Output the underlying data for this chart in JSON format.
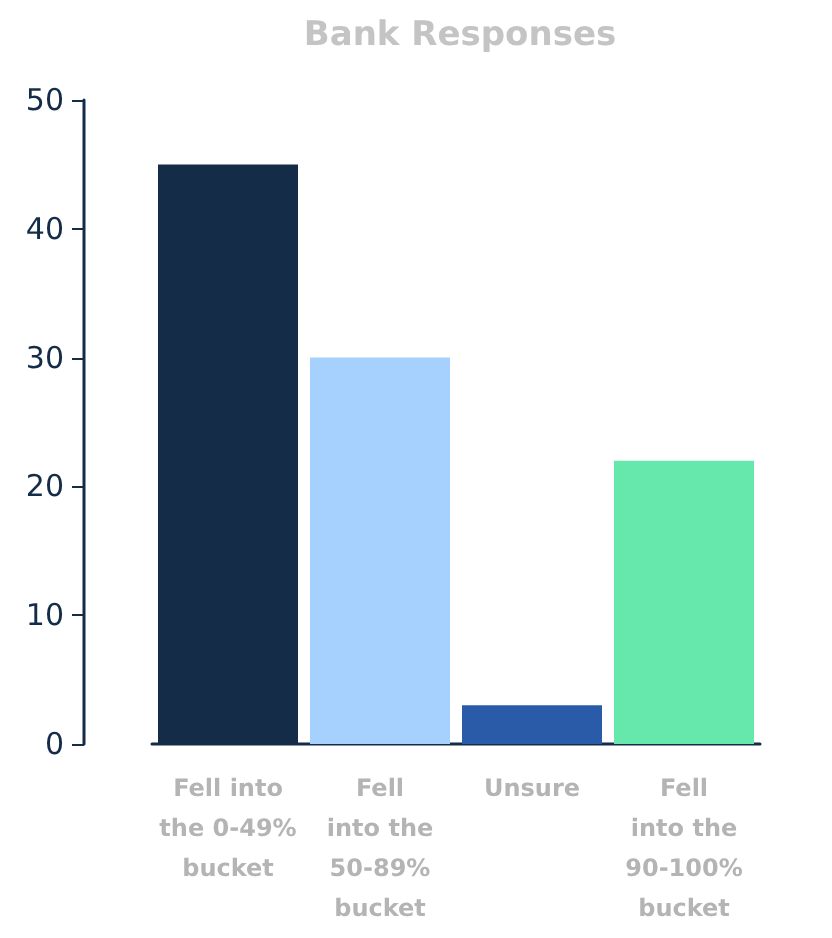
{
  "chart_data": {
    "type": "bar",
    "title": "Bank Responses",
    "categories": [
      "Fell into\nthe 0-49%\nbucket",
      "Fell\ninto the\n50-89%\nbucket",
      "Unsure",
      "Fell\ninto the\n90-100%\nbucket"
    ],
    "values": [
      45,
      30,
      3,
      22
    ],
    "colors": [
      "#142c47",
      "#a6d0fd",
      "#2a5ba8",
      "#66e8ac"
    ],
    "ylim": [
      0,
      50
    ],
    "yticks": [
      0,
      10,
      20,
      30,
      40,
      50
    ],
    "grid": false
  }
}
